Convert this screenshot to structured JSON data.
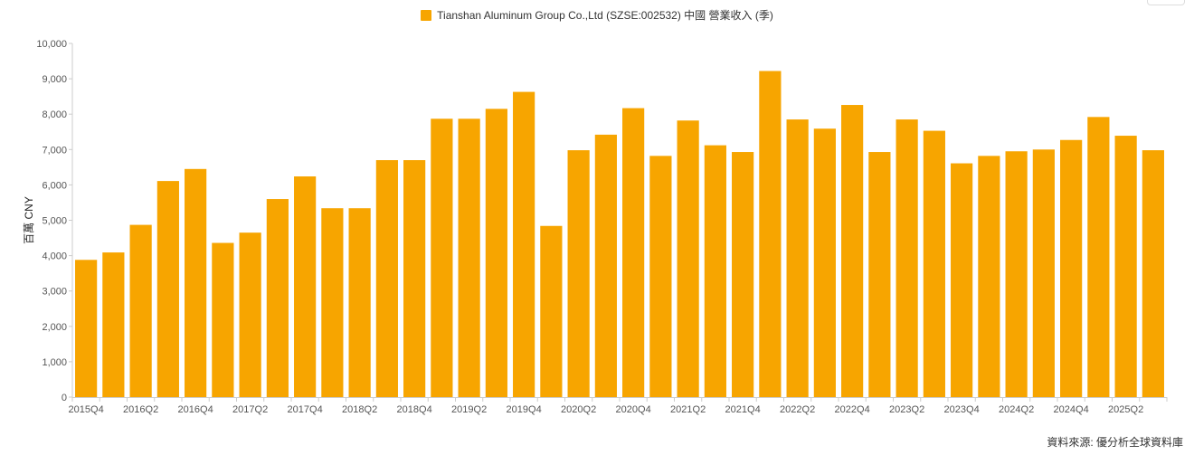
{
  "legend": {
    "label": "Tianshan Aluminum Group Co.,Ltd (SZSE:002532) 中國 營業收入 (季)"
  },
  "source": "資料來源: 優分析全球資料庫",
  "colors": {
    "bar": "#F7A500",
    "axis": "#cccccc",
    "text": "#555555"
  },
  "chart_data": {
    "type": "bar",
    "ylabel": "百萬 CNY",
    "ylim": [
      0,
      10000
    ],
    "yticks": [
      0,
      1000,
      2000,
      3000,
      4000,
      5000,
      6000,
      7000,
      8000,
      9000,
      10000
    ],
    "ytick_labels": [
      "0",
      "1,000",
      "2,000",
      "3,000",
      "4,000",
      "5,000",
      "6,000",
      "7,000",
      "8,000",
      "9,000",
      "10,000"
    ],
    "categories": [
      "2015Q4",
      "2016Q1",
      "2016Q2",
      "2016Q3",
      "2016Q4",
      "2017Q1",
      "2017Q2",
      "2017Q3",
      "2017Q4",
      "2018Q1",
      "2018Q2",
      "2018Q3",
      "2018Q4",
      "2019Q1",
      "2019Q2",
      "2019Q3",
      "2019Q4",
      "2020Q1",
      "2020Q2",
      "2020Q3",
      "2020Q4",
      "2021Q1",
      "2021Q2",
      "2021Q3",
      "2021Q4",
      "2022Q1",
      "2022Q2",
      "2022Q3",
      "2022Q4",
      "2023Q1",
      "2023Q2",
      "2023Q3",
      "2023Q4",
      "2024Q1",
      "2024Q2",
      "2024Q3",
      "2024Q4",
      "2025Q1",
      "2025Q2",
      "2025Q3"
    ],
    "xtick_labels": [
      "2015Q4",
      "2016Q2",
      "2016Q4",
      "2017Q2",
      "2017Q4",
      "2018Q2",
      "2018Q4",
      "2019Q2",
      "2019Q4",
      "2020Q2",
      "2020Q4",
      "2021Q2",
      "2021Q4",
      "2022Q2",
      "2022Q4",
      "2023Q2",
      "2023Q4",
      "2024Q2",
      "2024Q4",
      "2025Q2"
    ],
    "values": [
      3880,
      4090,
      4870,
      6110,
      6450,
      4360,
      4650,
      5600,
      6240,
      5340,
      5340,
      6700,
      6700,
      7870,
      7870,
      8150,
      8630,
      4840,
      6980,
      7420,
      8170,
      6820,
      7820,
      7120,
      6930,
      9220,
      7850,
      7590,
      8260,
      6930,
      7850,
      7530,
      6610,
      6820,
      6950,
      7000,
      7270,
      7920,
      7390,
      6980
    ],
    "grid": false,
    "legend_position": "top-center"
  }
}
